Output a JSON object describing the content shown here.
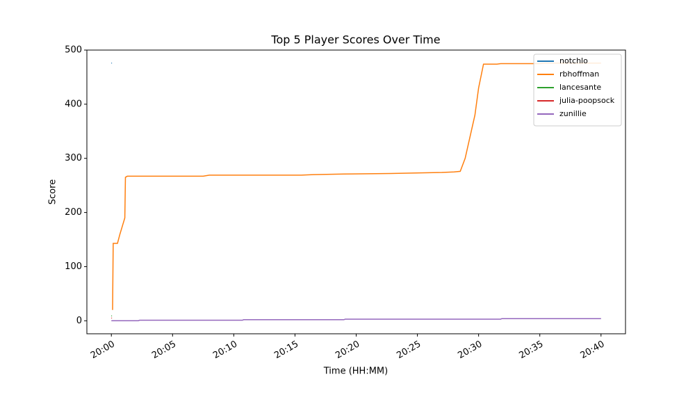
{
  "chart_data": {
    "type": "line",
    "title": "Top 5 Player Scores Over Time",
    "x_label": "Time (HH:MM)",
    "y_label": "Score",
    "xlim": [
      -2,
      42
    ],
    "xticks": [
      {
        "value": 0,
        "label": "20:00"
      },
      {
        "value": 5,
        "label": "20:05"
      },
      {
        "value": 10,
        "label": "20:10"
      },
      {
        "value": 15,
        "label": "20:15"
      },
      {
        "value": 20,
        "label": "20:20"
      },
      {
        "value": 25,
        "label": "20:25"
      },
      {
        "value": 30,
        "label": "20:30"
      },
      {
        "value": 35,
        "label": "20:35"
      },
      {
        "value": 40,
        "label": "20:40"
      }
    ],
    "ylim": [
      -24,
      500
    ],
    "yticks": [
      0,
      100,
      200,
      300,
      400,
      500
    ],
    "legend": "upper right",
    "series": [
      {
        "name": "notchlo",
        "color": "#1f77b4",
        "x": [
          0,
          0.05
        ],
        "values": [
          476,
          476
        ]
      },
      {
        "name": "rbhoffman",
        "color": "#ff7f0e",
        "x": [
          0.1,
          0.15,
          0.5,
          0.7,
          0.9,
          1.1,
          1.15,
          1.3,
          7.5,
          8,
          15.5,
          16.5,
          19,
          22.8,
          27,
          28,
          28.5,
          28.9,
          29.3,
          29.7,
          30.0,
          30.4,
          31.5,
          31.8,
          35,
          35.5,
          40
        ],
        "values": [
          20,
          143,
          143,
          160,
          175,
          190,
          265,
          267,
          267,
          269,
          269,
          270,
          271,
          272,
          274,
          275,
          276,
          300,
          340,
          380,
          430,
          474,
          474,
          475,
          475,
          476,
          476
        ]
      },
      {
        "name": "lancesante",
        "color": "#2ca02c",
        "x": [
          0,
          0.05
        ],
        "values": [
          9,
          9
        ]
      },
      {
        "name": "julia-poopsock",
        "color": "#d62728",
        "x": [
          0,
          0.05
        ],
        "values": [
          5,
          5
        ]
      },
      {
        "name": "zunillie",
        "color": "#9467bd",
        "x": [
          0,
          0.1,
          2.2,
          2.3,
          10.7,
          10.8,
          19,
          19.1,
          31.8,
          31.9,
          40
        ],
        "values": [
          0,
          0,
          0,
          1,
          1,
          2,
          2,
          3,
          3,
          4,
          4
        ]
      }
    ]
  }
}
